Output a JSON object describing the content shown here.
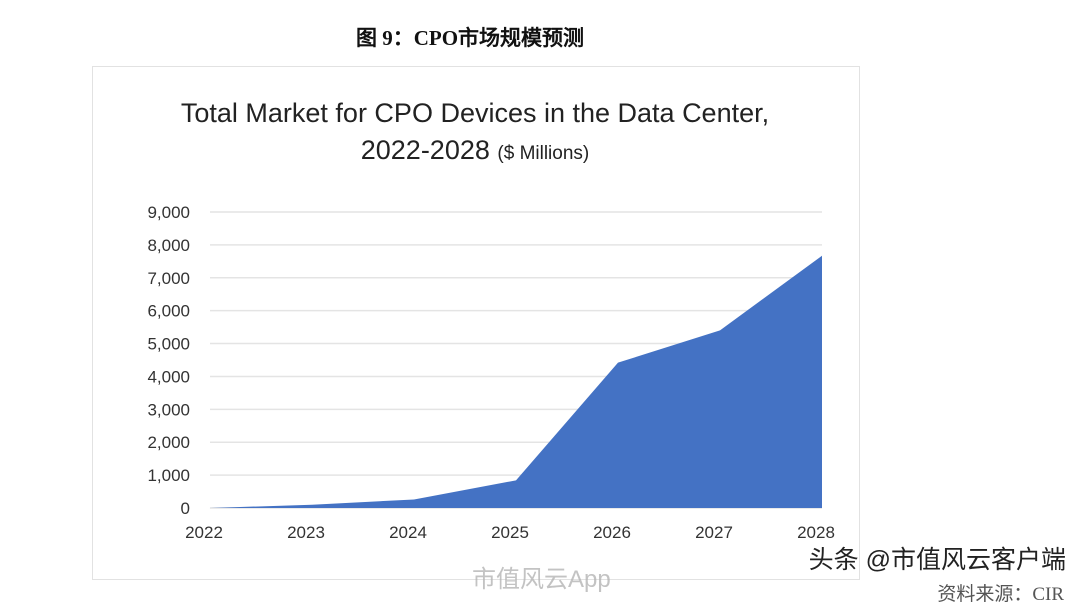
{
  "figure_caption": "图 9：CPO市场规模预测",
  "source": "资料来源：CIR",
  "watermarks": {
    "weibo": "市值风云App",
    "toutiao": "头条 @市值风云客户端"
  },
  "chart_data": {
    "type": "area",
    "title": "Total Market for CPO Devices in the Data Center,",
    "title_line2": "2022-2028",
    "unit": "($ Millions)",
    "categories": [
      "2022",
      "2023",
      "2024",
      "2025",
      "2026",
      "2027",
      "2028"
    ],
    "values": [
      0,
      100,
      260,
      840,
      4420,
      5400,
      7670
    ],
    "yticks": [
      "0",
      "1,000",
      "2,000",
      "3,000",
      "4,000",
      "5,000",
      "6,000",
      "7,000",
      "8,000",
      "9,000"
    ],
    "ylim": [
      0,
      9000
    ],
    "grid": true,
    "color": "#4472C4"
  }
}
